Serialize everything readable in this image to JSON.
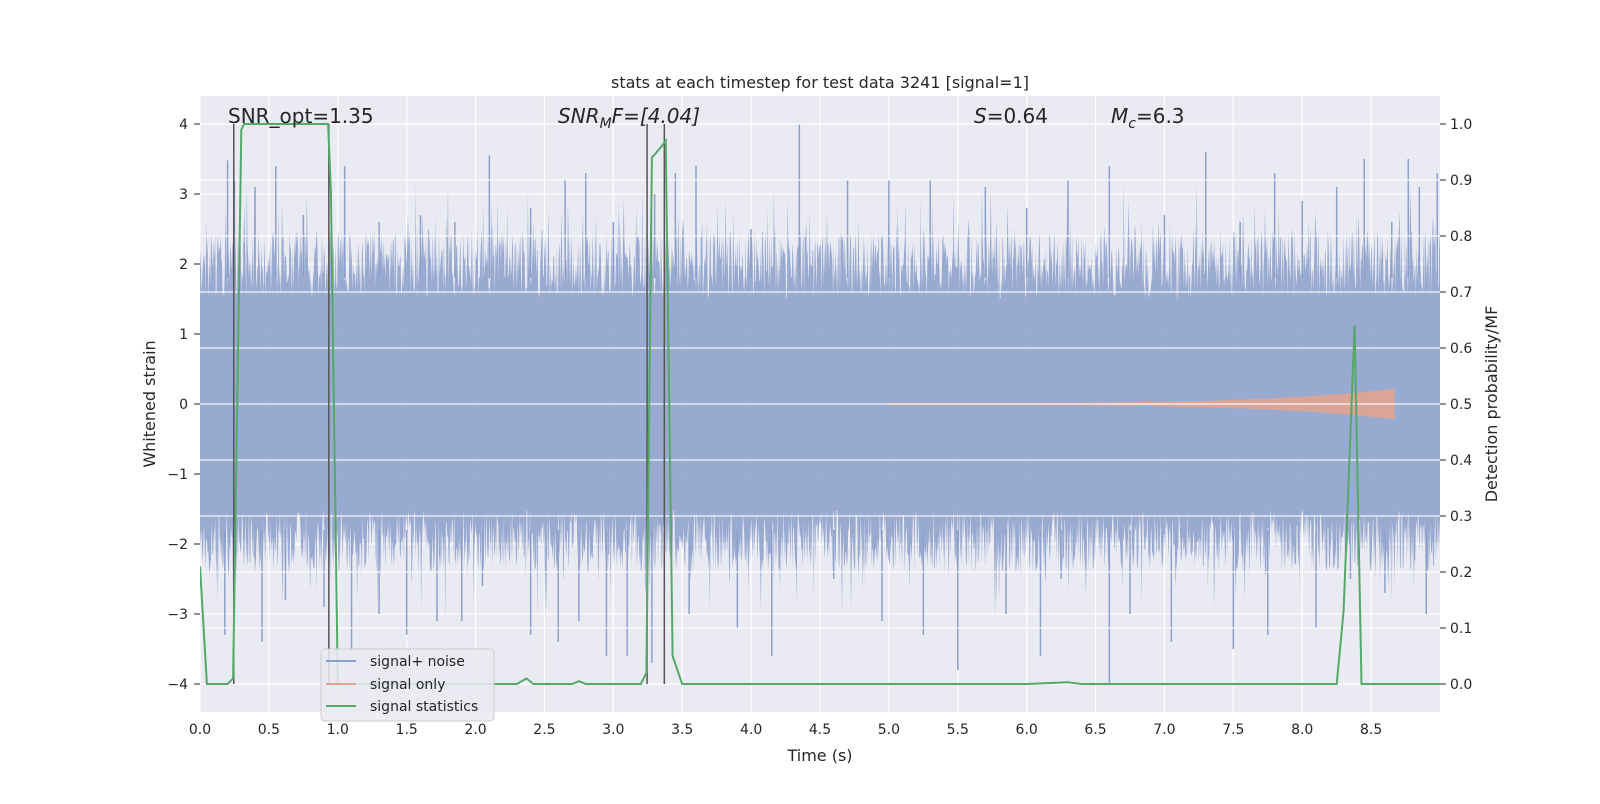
{
  "chart_data": {
    "type": "line",
    "title": "stats at each timestep for test data 3241 [signal=1]",
    "xlabel": "Time (s)",
    "ylabel_left": "Whitened strain",
    "ylabel_right": "Detection probability/MF",
    "xlim": [
      0.0,
      9.0
    ],
    "ylim_left": [
      -4.4,
      4.4
    ],
    "ylim_right": [
      -0.05,
      1.05
    ],
    "xticks": [
      "0.0",
      "0.5",
      "1.0",
      "1.5",
      "2.0",
      "2.5",
      "3.0",
      "3.5",
      "4.0",
      "4.5",
      "5.0",
      "5.5",
      "6.0",
      "6.5",
      "7.0",
      "7.5",
      "8.0",
      "8.5"
    ],
    "yticks_left": [
      "4",
      "3",
      "2",
      "1",
      "0",
      "−1",
      "−2",
      "−3",
      "−4"
    ],
    "yticks_right": [
      "1.0",
      "0.9",
      "0.8",
      "0.7",
      "0.6",
      "0.5",
      "0.4",
      "0.3",
      "0.2",
      "0.1",
      "0.0"
    ],
    "annotations": {
      "snr_opt": "SNR_opt=1.35",
      "snr_mf_base": "SNR",
      "snr_mf_sub": "M",
      "snr_mf_rest": "F=[4.04]",
      "s_base": "S",
      "s_rest": "=0.64",
      "mc_base": "M",
      "mc_sub": "c",
      "mc_rest": "=6.3"
    },
    "vertical_lines_x": [
      0.245,
      0.935,
      3.245,
      3.37
    ],
    "legend": {
      "position": "lower-left",
      "entries": [
        "signal+ noise",
        "signal only",
        "signal statistics"
      ]
    },
    "series": [
      {
        "name": "signal+ noise",
        "axis": "left",
        "color": "#8da0cb",
        "kind": "noise",
        "spikes_up": [
          [
            0.2,
            3.48
          ],
          [
            0.25,
            3.2
          ],
          [
            0.32,
            2.3
          ],
          [
            0.4,
            3.1
          ],
          [
            0.55,
            3.4
          ],
          [
            0.75,
            2.7
          ],
          [
            1.05,
            3.4
          ],
          [
            1.3,
            2.6
          ],
          [
            1.6,
            2.7
          ],
          [
            1.85,
            2.6
          ],
          [
            2.1,
            3.55
          ],
          [
            2.4,
            2.8
          ],
          [
            2.65,
            3.2
          ],
          [
            2.8,
            3.3
          ],
          [
            3.0,
            2.6
          ],
          [
            3.3,
            3.0
          ],
          [
            3.45,
            3.3
          ],
          [
            3.6,
            3.4
          ],
          [
            4.0,
            2.5
          ],
          [
            4.35,
            4.0
          ],
          [
            4.7,
            3.2
          ],
          [
            5.0,
            3.2
          ],
          [
            5.3,
            3.2
          ],
          [
            5.7,
            3.1
          ],
          [
            6.0,
            2.8
          ],
          [
            6.3,
            3.2
          ],
          [
            6.6,
            3.4
          ],
          [
            7.0,
            2.7
          ],
          [
            7.3,
            3.6
          ],
          [
            7.55,
            2.6
          ],
          [
            7.8,
            3.3
          ],
          [
            8.0,
            2.9
          ],
          [
            8.25,
            3.1
          ],
          [
            8.45,
            3.5
          ],
          [
            8.65,
            2.6
          ],
          [
            8.77,
            3.5
          ],
          [
            8.85,
            3.1
          ],
          [
            8.98,
            3.3
          ]
        ],
        "spikes_down": [
          [
            0.18,
            -3.3
          ],
          [
            0.45,
            -3.4
          ],
          [
            0.62,
            -2.8
          ],
          [
            0.9,
            -2.9
          ],
          [
            1.1,
            -3.5
          ],
          [
            1.3,
            -3.0
          ],
          [
            1.5,
            -3.3
          ],
          [
            1.72,
            -3.1
          ],
          [
            1.9,
            -3.1
          ],
          [
            2.05,
            -2.6
          ],
          [
            2.4,
            -3.3
          ],
          [
            2.6,
            -3.4
          ],
          [
            2.75,
            -3.1
          ],
          [
            2.95,
            -3.6
          ],
          [
            3.1,
            -3.6
          ],
          [
            3.28,
            -3.7
          ],
          [
            3.55,
            -3.0
          ],
          [
            3.9,
            -3.2
          ],
          [
            4.15,
            -3.6
          ],
          [
            4.6,
            -2.5
          ],
          [
            4.95,
            -3.1
          ],
          [
            5.25,
            -3.3
          ],
          [
            5.5,
            -3.8
          ],
          [
            5.85,
            -3.0
          ],
          [
            6.1,
            -3.6
          ],
          [
            6.25,
            -2.5
          ],
          [
            6.6,
            -4.0
          ],
          [
            6.75,
            -3.0
          ],
          [
            7.05,
            -3.4
          ],
          [
            7.5,
            -3.5
          ],
          [
            7.75,
            -3.3
          ],
          [
            8.1,
            -3.2
          ],
          [
            8.35,
            -2.5
          ],
          [
            8.6,
            -2.7
          ],
          [
            8.9,
            -3.0
          ]
        ]
      },
      {
        "name": "signal only",
        "axis": "left",
        "color": "#e5a58c",
        "kind": "chirp",
        "x_start": 5.0,
        "x_end": 8.67,
        "max_amplitude": 0.2
      },
      {
        "name": "signal statistics",
        "axis": "right",
        "color": "#55a868",
        "x": [
          0.0,
          0.05,
          0.2,
          0.24,
          0.3,
          0.32,
          0.93,
          0.95,
          1.0,
          1.1,
          1.3,
          1.5,
          1.8,
          2.0,
          2.3,
          2.37,
          2.42,
          2.5,
          2.7,
          2.75,
          2.8,
          3.0,
          3.2,
          3.24,
          3.28,
          3.35,
          3.38,
          3.43,
          3.5,
          3.6,
          4.0,
          5.0,
          6.0,
          6.3,
          6.4,
          7.0,
          7.5,
          8.0,
          8.25,
          8.3,
          8.38,
          8.43,
          8.5,
          9.0
        ],
        "y": [
          0.21,
          0.0,
          0.0,
          0.01,
          0.99,
          1.0,
          1.0,
          0.88,
          0.0,
          0.0,
          0.0,
          0.0,
          0.0,
          0.0,
          0.0,
          0.01,
          0.0,
          0.0,
          0.0,
          0.005,
          0.0,
          0.0,
          0.0,
          0.02,
          0.94,
          0.96,
          0.97,
          0.05,
          0.0,
          0.0,
          0.0,
          0.0,
          0.0,
          0.003,
          0.0,
          0.0,
          0.0,
          0.0,
          0.0,
          0.13,
          0.64,
          0.0,
          0.0,
          0.0
        ]
      }
    ]
  }
}
